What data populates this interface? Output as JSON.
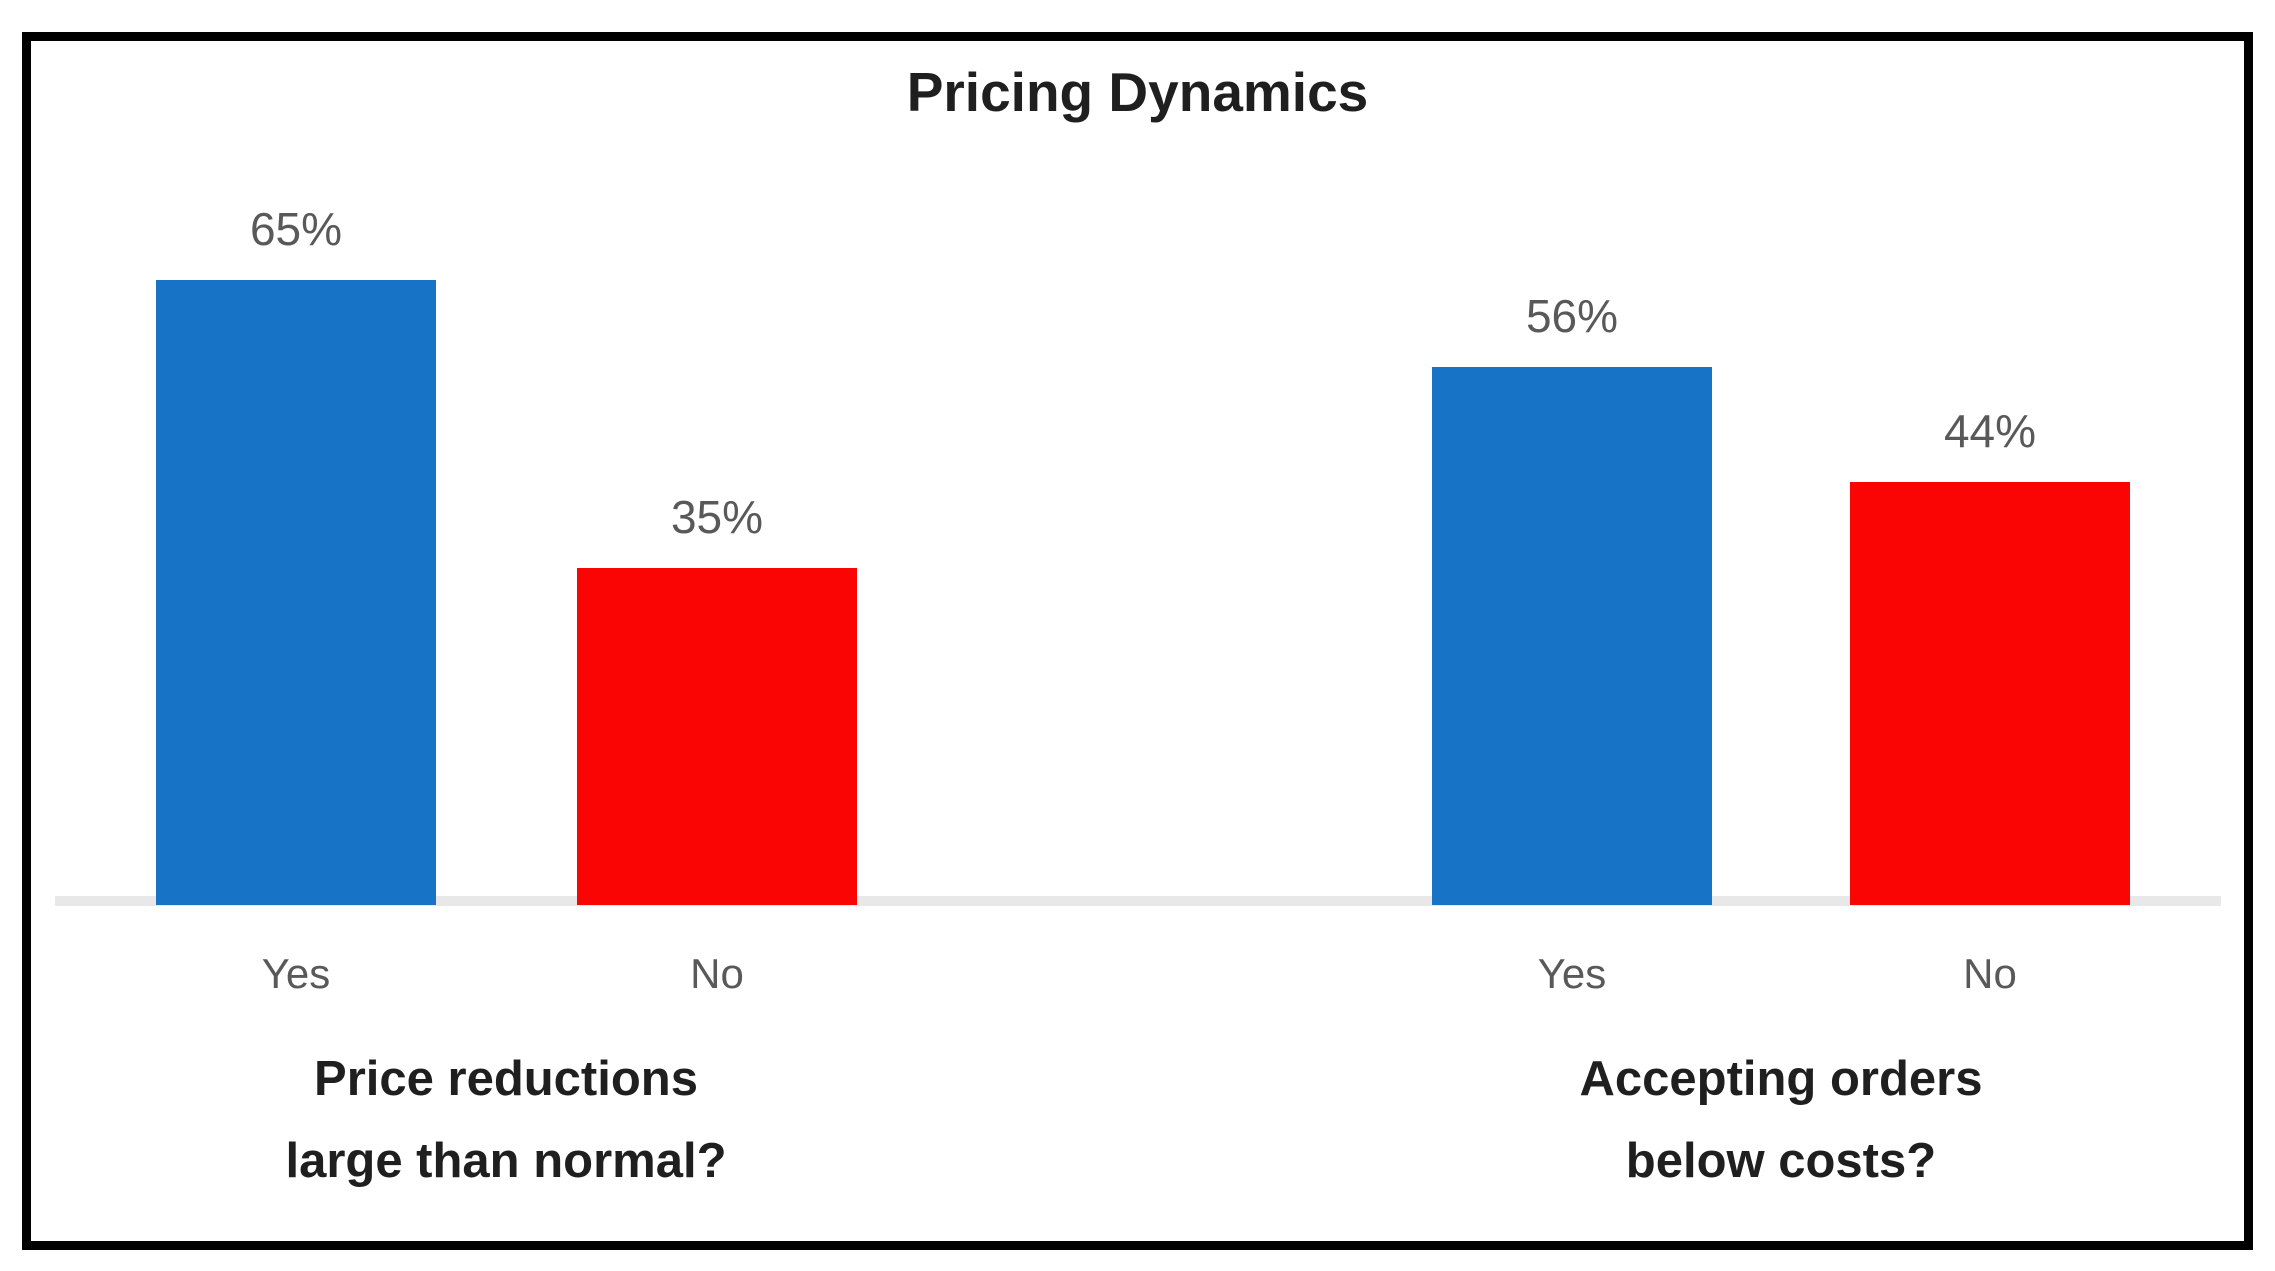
{
  "title": "Pricing Dynamics",
  "style": {
    "frame_border_color": "#000000",
    "bar_yes_color": "#1673C5",
    "bar_no_color": "#FB0404",
    "axis_line_color": "#E8E8E8",
    "value_label_color": "#595959",
    "category_label_color": "#595959",
    "heading_color": "#1F1F1F"
  },
  "chart_data": {
    "type": "bar",
    "title": "Pricing Dynamics",
    "value_unit": "percent",
    "ylim": [
      0,
      70
    ],
    "grid": false,
    "legend": "none",
    "series_colors": {
      "Yes": "#1673C5",
      "No": "#FB0404"
    },
    "groups": [
      {
        "question": "Price reductions large than normal?",
        "question_lines": [
          "Price reductions",
          "large than normal?"
        ],
        "categories": [
          "Yes",
          "No"
        ],
        "values": [
          65,
          35
        ],
        "value_labels": [
          "65%",
          "35%"
        ]
      },
      {
        "question": "Accepting orders below costs?",
        "question_lines": [
          "Accepting orders",
          "below costs?"
        ],
        "categories": [
          "Yes",
          "No"
        ],
        "values": [
          56,
          44
        ],
        "value_labels": [
          "56%",
          "44%"
        ]
      }
    ]
  }
}
